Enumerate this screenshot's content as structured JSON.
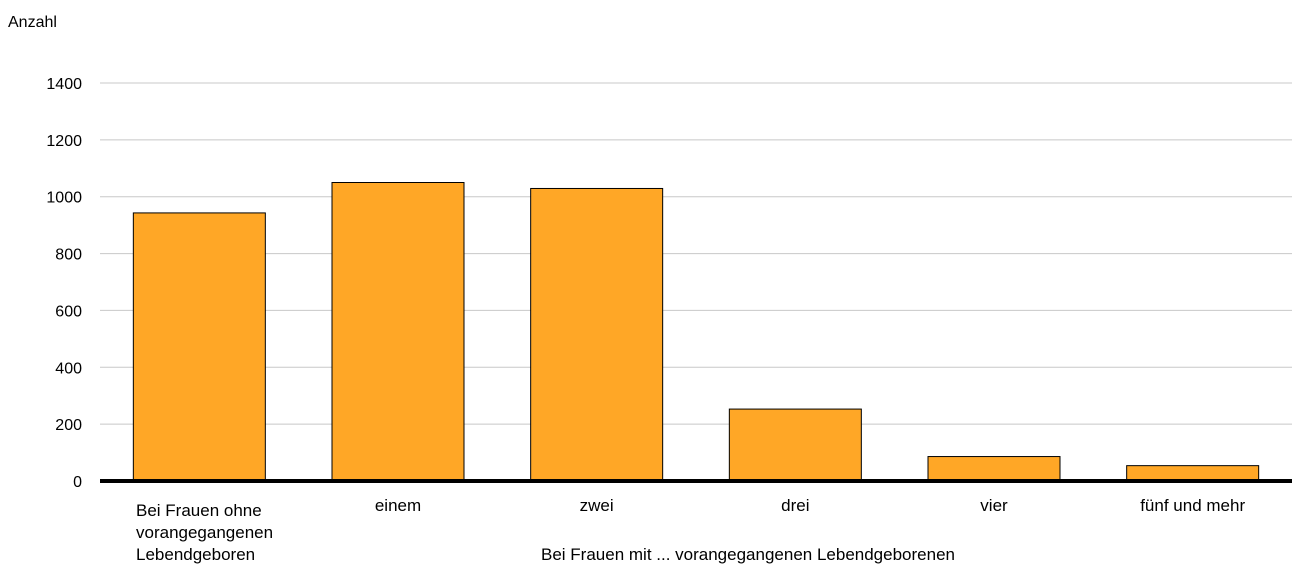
{
  "chart_data": {
    "type": "bar",
    "ylabel": "Anzahl",
    "xlabel": "Bei Frauen mit ... vorangegangenen Lebendgeborenen",
    "categories": [
      [
        "Bei Frauen ohne",
        "vorangegangenen",
        "Lebendgeboren"
      ],
      [
        "einem"
      ],
      [
        "zwei"
      ],
      [
        "drei"
      ],
      [
        "vier"
      ],
      [
        "fünf und mehr"
      ]
    ],
    "values": [
      943,
      1050,
      1029,
      253,
      86,
      54
    ],
    "ylim": [
      0,
      1400
    ],
    "yticks": [
      0,
      200,
      400,
      600,
      800,
      1000,
      1200,
      1400
    ],
    "grid": true,
    "bar_color": "#ffa726",
    "bar_stroke": "#000000",
    "grid_color": "#c8c8c8"
  }
}
